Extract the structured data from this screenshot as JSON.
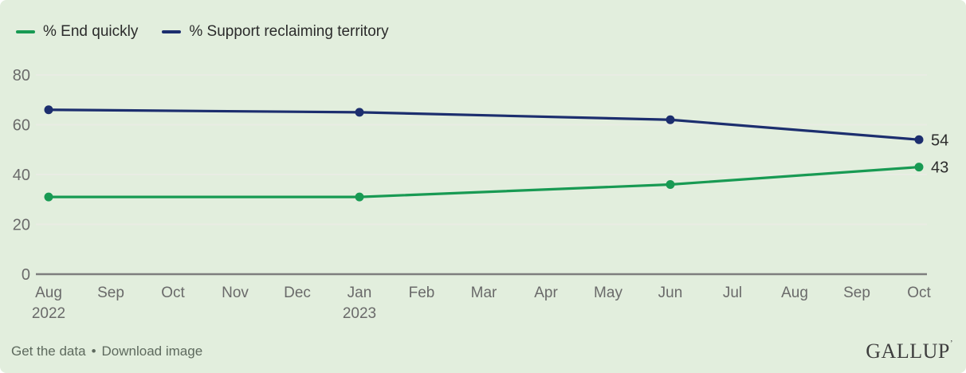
{
  "colors": {
    "background": "#e2eedd",
    "grid": "#e9ece4",
    "axis": "#7e7e7e",
    "tick_label": "#6a6a6a",
    "value_label": "#2c2c2c",
    "green_series": "#189a53",
    "navy_series": "#1c2e6e"
  },
  "chart_data": {
    "type": "line",
    "x": [
      "Aug",
      "Sep",
      "Oct",
      "Nov",
      "Dec",
      "Jan",
      "Feb",
      "Mar",
      "Apr",
      "May",
      "Jun",
      "Jul",
      "Aug",
      "Sep",
      "Oct"
    ],
    "x_sublabels": {
      "0": "2022",
      "5": "2023"
    },
    "series": [
      {
        "name": "% End quickly",
        "color": "#189a53",
        "points": [
          [
            0,
            31
          ],
          [
            5,
            31
          ],
          [
            10,
            36
          ],
          [
            14,
            43
          ]
        ],
        "end_label": "43"
      },
      {
        "name": "% Support reclaiming territory",
        "color": "#1c2e6e",
        "points": [
          [
            0,
            66
          ],
          [
            5,
            65
          ],
          [
            10,
            62
          ],
          [
            14,
            54
          ]
        ],
        "end_label": "54"
      }
    ],
    "ylim": [
      0,
      80
    ],
    "yticks": [
      0,
      20,
      40,
      60,
      80
    ],
    "grid": true,
    "legend_position": "top-left"
  },
  "footer": {
    "link_get_data": "Get the data",
    "separator": "•",
    "link_download": "Download image",
    "logo": "GALLUP",
    "logo_mark": "’"
  }
}
